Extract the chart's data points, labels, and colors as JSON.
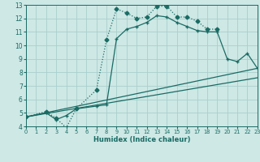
{
  "xlabel": "Humidex (Indice chaleur)",
  "background_color": "#cde8e5",
  "grid_color": "#aacfcc",
  "line_color": "#1a6b64",
  "xlim": [
    0,
    23
  ],
  "ylim": [
    4,
    13
  ],
  "xticks": [
    0,
    1,
    2,
    3,
    4,
    5,
    6,
    7,
    8,
    9,
    10,
    11,
    12,
    13,
    14,
    15,
    16,
    17,
    18,
    19,
    20,
    21,
    22,
    23
  ],
  "yticks": [
    4,
    5,
    6,
    7,
    8,
    9,
    10,
    11,
    12,
    13
  ],
  "series": [
    {
      "x": [
        0,
        2,
        3,
        4,
        5,
        7,
        8,
        9,
        10,
        11,
        12,
        13,
        14,
        15,
        16,
        17,
        18,
        19
      ],
      "y": [
        4.7,
        5.1,
        4.6,
        3.9,
        5.3,
        6.7,
        10.4,
        12.7,
        12.4,
        12.0,
        12.1,
        12.9,
        12.9,
        12.1,
        12.1,
        11.8,
        11.2,
        11.2
      ],
      "marker": "D",
      "markersize": 2.5,
      "linewidth": 0.9,
      "linestyle": "dotted"
    },
    {
      "x": [
        0,
        2,
        3,
        4,
        5,
        7,
        8,
        9,
        10,
        11,
        12,
        13,
        14,
        15,
        16,
        17,
        18,
        19,
        20,
        21,
        22,
        23
      ],
      "y": [
        4.7,
        5.0,
        4.5,
        4.8,
        5.3,
        5.5,
        5.6,
        10.5,
        11.2,
        11.4,
        11.7,
        12.2,
        12.1,
        11.7,
        11.4,
        11.1,
        11.0,
        11.0,
        9.0,
        8.8,
        9.4,
        8.3
      ],
      "marker": "+",
      "markersize": 3.5,
      "linewidth": 0.9,
      "linestyle": "solid"
    },
    {
      "x": [
        0,
        23
      ],
      "y": [
        4.7,
        8.3
      ],
      "marker": "none",
      "markersize": 0,
      "linewidth": 0.9,
      "linestyle": "solid"
    },
    {
      "x": [
        0,
        23
      ],
      "y": [
        4.7,
        7.6
      ],
      "marker": "none",
      "markersize": 0,
      "linewidth": 0.9,
      "linestyle": "solid"
    }
  ]
}
